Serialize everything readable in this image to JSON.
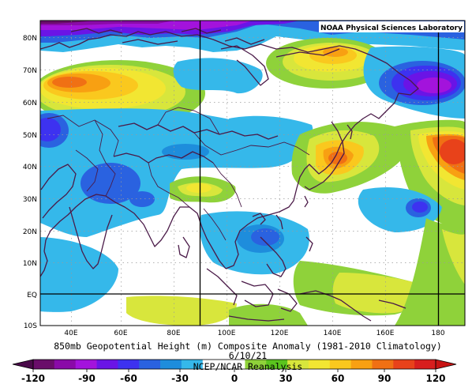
{
  "map": {
    "credit": "NOAA Physical Sciences Laboratory",
    "lat_labels": [
      "80N",
      "70N",
      "60N",
      "50N",
      "40N",
      "30N",
      "20N",
      "10N",
      "EQ",
      "10S"
    ],
    "lon_labels": [
      "40E",
      "60E",
      "80E",
      "100E",
      "120E",
      "140E",
      "160E",
      "180"
    ],
    "extent": {
      "lon_min": 30,
      "lon_max": 190,
      "lat_min": -10,
      "lat_max": 84
    }
  },
  "captions": {
    "title": "850mb Geopotential Height (m) Composite Anomaly (1981-2010 Climatology)",
    "date": "6/10/21",
    "source": "NCEP/NCAR Reanalysis"
  },
  "colorbar": {
    "labels": [
      "-120",
      "-90",
      "-60",
      "-30",
      "0",
      "30",
      "60",
      "90",
      "120"
    ],
    "colors": [
      "#6a0d6a",
      "#8a0aa8",
      "#a313dc",
      "#6a14e6",
      "#3d32f0",
      "#2a62e0",
      "#1e8ddc",
      "#35b8ea",
      "#ffffff",
      "#ffffff",
      "#8fd23a",
      "#5ac41e",
      "#d8e63c",
      "#f2e632",
      "#fac81e",
      "#f8a012",
      "#f07014",
      "#e8421a",
      "#d81e1e"
    ]
  },
  "anomalies": [
    {
      "kind": "low",
      "level": -120,
      "region": "Arctic north of Central Siberia"
    },
    {
      "kind": "high",
      "level": 90,
      "region": "Western Siberia"
    },
    {
      "kind": "high",
      "level": 60,
      "region": "Eastern Siberia / Laptev Sea"
    },
    {
      "kind": "low",
      "level": -90,
      "region": "Chukotka"
    },
    {
      "kind": "low",
      "level": -60,
      "region": "Kazakhstan"
    },
    {
      "kind": "low",
      "level": -30,
      "region": "Central and South Asia"
    },
    {
      "kind": "high",
      "level": 30,
      "region": "Tibetan Plateau"
    },
    {
      "kind": "high",
      "level": 90,
      "region": "Japan"
    },
    {
      "kind": "high",
      "level": 120,
      "region": "Central North Pacific"
    },
    {
      "kind": "low",
      "level": -60,
      "region": "South China Sea"
    },
    {
      "kind": "low",
      "level": -60,
      "region": "Western Pacific near 25N 155E"
    }
  ]
}
